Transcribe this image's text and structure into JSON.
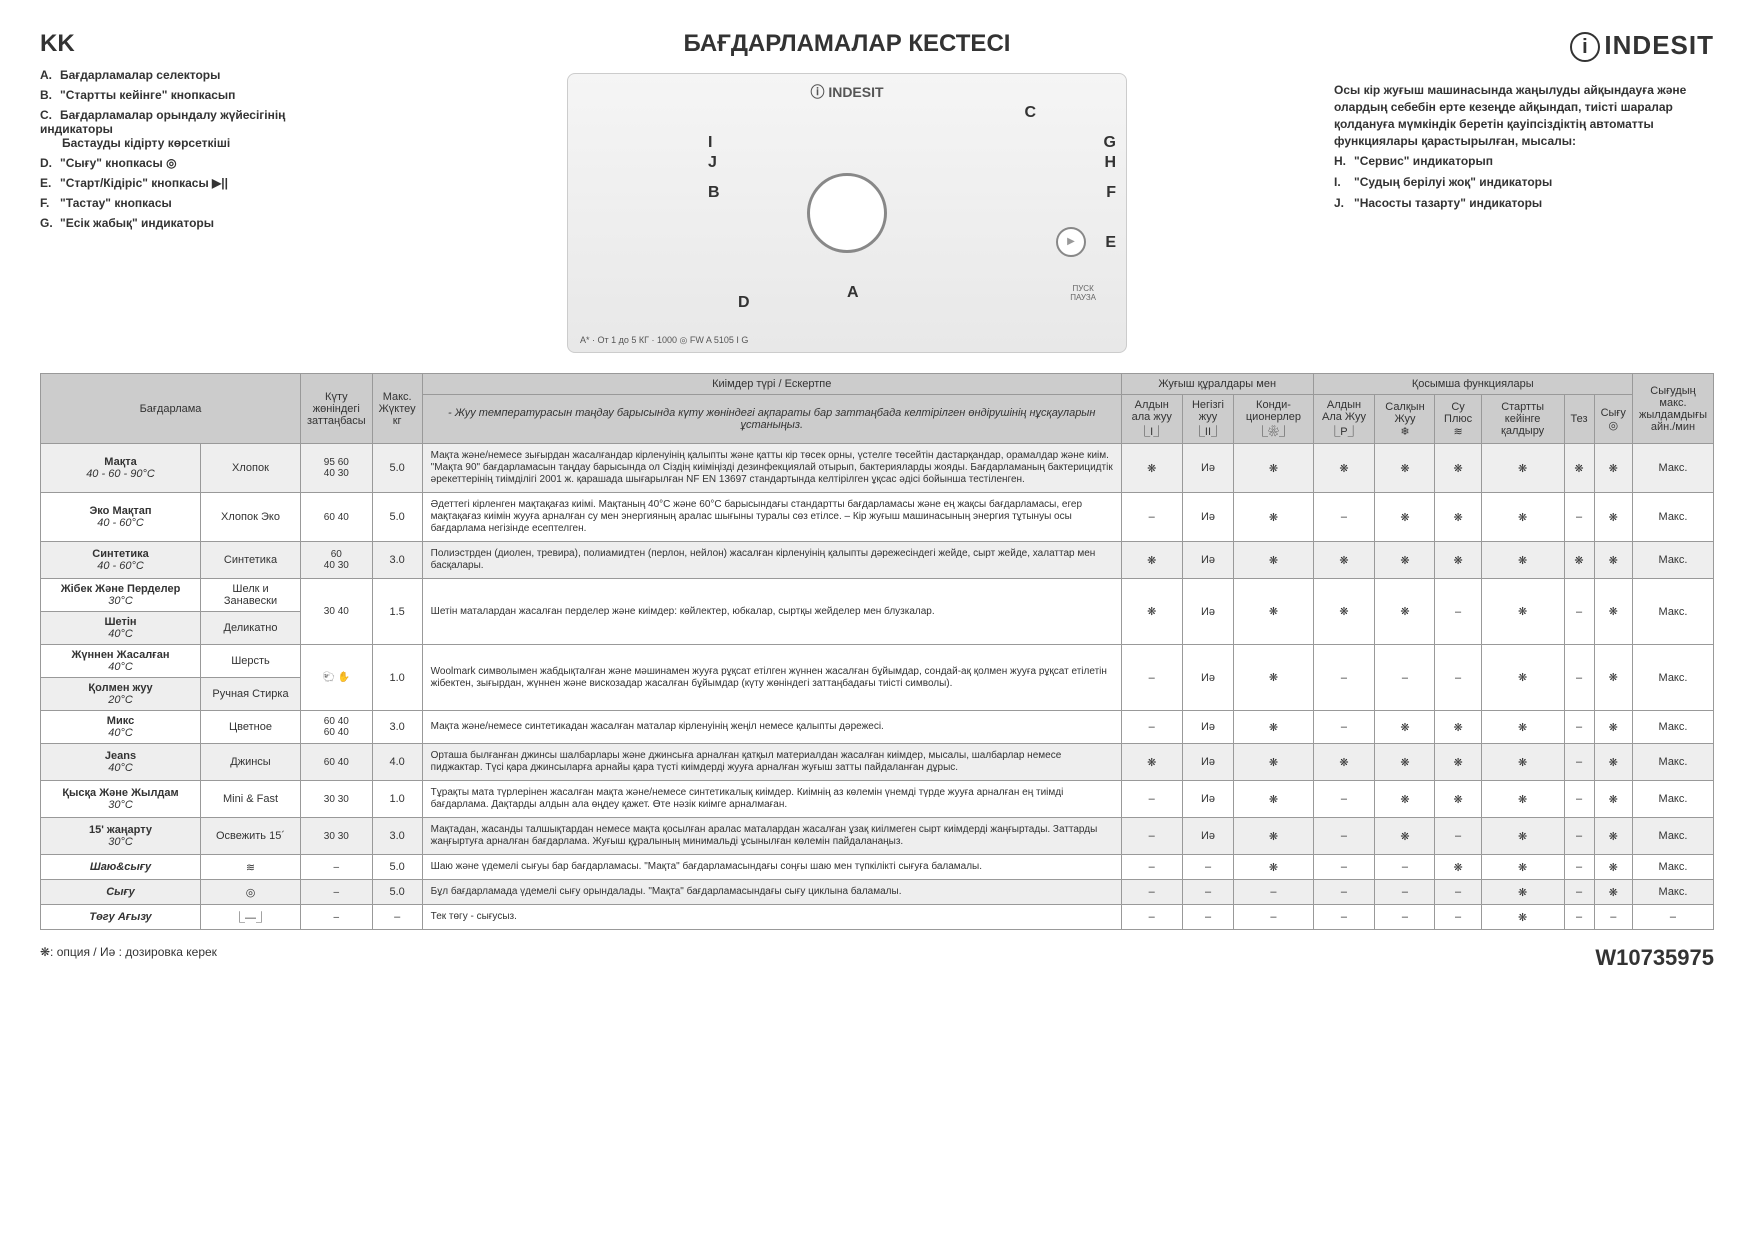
{
  "lang_label": "KK",
  "main_title": "БАҒДАРЛАМАЛАР КЕСТЕСІ",
  "brand": "INDESIT",
  "legend_left": [
    {
      "letter": "A.",
      "text": "Бағдарламалар селекторы"
    },
    {
      "letter": "B.",
      "text": "\"Стартты кейінге\" кнопкасып"
    },
    {
      "letter": "C.",
      "text": "Бағдарламалар орындалу жүйесігінің индикаторы",
      "sub": "Бастауды кідірту көрсеткіші"
    },
    {
      "letter": "D.",
      "text": "\"Сығу\" кнопкасы ◎"
    },
    {
      "letter": "E.",
      "text": "\"Старт/Кідіріс\" кнопкасы ▶||"
    },
    {
      "letter": "F.",
      "text": "\"Тастау\" кнопкасы"
    },
    {
      "letter": "G.",
      "text": "\"Есік жабық\" индикаторы"
    }
  ],
  "right_intro": "Осы кір жуғыш машинасында жаңылуды айқындауға және олардың себебін ерте кезеңде айқындап, тиісті шаралар қолдануға мүмкіндік беретін қауіпсіздіктің автоматты функциялары қарастырылған, мысалы:",
  "legend_right": [
    {
      "letter": "H.",
      "text": "\"Сервис\" индикаторып"
    },
    {
      "letter": "I.",
      "text": "\"Судың берілуі жоқ\" индикаторы"
    },
    {
      "letter": "J.",
      "text": "\"Насосты тазарту\" индикаторы"
    }
  ],
  "panel_labels": [
    "A",
    "B",
    "C",
    "D",
    "E",
    "F",
    "G",
    "H",
    "I",
    "J"
  ],
  "panel_bottom": "A* · От 1 до 5 КГ · 1000 ◎    FW A 5105 I G",
  "table_headers": {
    "program": "Бағдарлама",
    "care_label": "Күту жөніндегі заттаңбасы",
    "max_load": "Макс. Жүктеу кг",
    "fabric_type": "Киімдер түрі / Ескертпе",
    "fabric_note": "- Жуу температурасын таңдау барысында күту жөніндегі ақпараты бар заттаңбада келтірілген өндірушінің нұсқауларын ұстаныңыз.",
    "detergents": "Жуғыш құралдары мен",
    "det_cols": [
      "Алдын ала жуу",
      "Негізгі жуу",
      "Конди-ционерлер"
    ],
    "det_icons": [
      "⎿I⏌",
      "⎿II⏌",
      "⎿❀⏌"
    ],
    "options": "Қосымша функциялары",
    "opt_cols": [
      "Алдын Ала Жуу",
      "Салқын Жуу",
      "Су Плюс",
      "Стартты кейінге қалдыру",
      "Тез",
      "Сығу"
    ],
    "opt_icons": [
      "⎿P⏌",
      "❄",
      "≋",
      "",
      "",
      "◎"
    ],
    "spin": "Сығудың макс. жылдамдығы айн./мин"
  },
  "rows": [
    {
      "name": "Мақта",
      "temp": "40 - 60 - 90°C",
      "name_ru": "Хлопок",
      "care": "95 60\n40 30",
      "load": "5.0",
      "desc": "Мақта және/немесе зығырдан жасалғандар кірленуінің қалыпты және қатты кір төсек орны, үстелге төсейтін дастарқандар, орамалдар және киім. \"Мақта 90\" бағдарламасын таңдау барысында ол Сіздің киіміңізді дезинфекциялай отырып, бактерияларды жояды. Бағдарламаның бактерицидтік әрекеттерінің тиімділігі 2001 ж. қарашада шығарылған NF EN 13697 стандартында келтірілген ұқсас әдісі бойынша тестіленген.",
      "c1": "❋",
      "c2": "Иә",
      "c3": "❋",
      "o1": "❋",
      "o2": "❋",
      "o3": "❋",
      "o4": "❋",
      "o5": "❋",
      "o6": "❋",
      "spin": "Макс."
    },
    {
      "name": "Эко Мақтап",
      "temp": "40 - 60°C",
      "name_ru": "Хлопок Эко",
      "care": "60 40",
      "load": "5.0",
      "desc": "Әдеттегі кірленген мақтақағаз киімі. Мақтаның  40°C және 60°C барысындағы стандартты бағдарламасы және ең жақсы бағдарламасы, егер мақтақағаз киімін жууға арналған су мен энергияның аралас шығыны туралы сөз етілсе. – Кір жуғыш машинасының энергия тұтынуы  осы бағдарлама негізінде есептелген.",
      "c1": "–",
      "c2": "Иә",
      "c3": "❋",
      "o1": "–",
      "o2": "❋",
      "o3": "❋",
      "o4": "❋",
      "o5": "–",
      "o6": "❋",
      "spin": "Макс."
    },
    {
      "name": "Синтетика",
      "temp": "40 - 60°C",
      "name_ru": "Синтетика",
      "care": "60\n40 30",
      "load": "3.0",
      "desc": "Полиэстрден (диолен, тревира), полиамидтен (перлон, нейлон) жасалған кірленуінің қалыпты дәрежесіндегі жейде, сырт жейде, халаттар мен басқалары.",
      "c1": "❋",
      "c2": "Иә",
      "c3": "❋",
      "o1": "❋",
      "o2": "❋",
      "o3": "❋",
      "o4": "❋",
      "o5": "❋",
      "o6": "❋",
      "spin": "Макс."
    },
    {
      "name": "Жібек Және Перделер",
      "temp": "30°C",
      "name_ru": "Шелк и Занавески",
      "care": "30 40",
      "load": "1.5",
      "desc": "Шетін маталардан жасалған перделер және киімдер: көйлектер, юбкалар, сыртқы жейделер мен блузкалар.",
      "c1": "❋",
      "c2": "Иә",
      "c3": "❋",
      "o1": "❋",
      "o2": "❋",
      "o3": "–",
      "o4": "❋",
      "o5": "–",
      "o6": "❋",
      "spin": "Макс.",
      "merge_next": true
    },
    {
      "name": "Шетін",
      "temp": "40°C",
      "name_ru": "Деликатно",
      "merged": true
    },
    {
      "name": "Жүннен Жасалған",
      "temp": "40°C",
      "name_ru": "Шерсть",
      "care": "🐑 ✋",
      "load": "1.0",
      "desc": "Woolmark символымен жабдықталған және мәшинамен жууға рұқсат етілген жүннен жасалған бұйымдар, сондай-ақ қолмен жууға рұқсат етілетін жібектен, зығырдан, жүннен және вискозадар жасалған бұйымдар (күту жөніндегі заттаңбадағы тиісті символы).",
      "c1": "–",
      "c2": "Иә",
      "c3": "❋",
      "o1": "–",
      "o2": "–",
      "o3": "–",
      "o4": "❋",
      "o5": "–",
      "o6": "❋",
      "spin": "Макс.",
      "merge_next": true
    },
    {
      "name": "Қолмен жуу",
      "temp": "20°C",
      "name_ru": "Ручная Стирка",
      "merged": true
    },
    {
      "name": "Микс",
      "temp": "40°C",
      "name_ru": "Цветное",
      "care": "60 40\n60 40",
      "load": "3.0",
      "desc": "Мақта және/немесе синтетикадан жасалған маталар кірленуінің жеңіл немесе қалыпты дәрежесі.",
      "c1": "–",
      "c2": "Иә",
      "c3": "❋",
      "o1": "–",
      "o2": "❋",
      "o3": "❋",
      "o4": "❋",
      "o5": "–",
      "o6": "❋",
      "spin": "Макс."
    },
    {
      "name": "Jeans",
      "temp": "40°C",
      "name_ru": "Джинсы",
      "care": "60 40",
      "load": "4.0",
      "desc": "Орташа былғанған джинсы шалбарлары және джинсыға арналған қатқыл материалдан жасалған киімдер, мысалы, шалбарлар немесе пиджактар. Түсі қара джинсыларға арнайы қара түсті киімдерді жууға арналған жуғыш затты пайдаланған дұрыс.",
      "c1": "❋",
      "c2": "Иә",
      "c3": "❋",
      "o1": "❋",
      "o2": "❋",
      "o3": "❋",
      "o4": "❋",
      "o5": "–",
      "o6": "❋",
      "spin": "Макс."
    },
    {
      "name": "Қысқа Және Жылдам",
      "temp": "30°C",
      "name_ru": "Mini & Fast",
      "care": "30 30",
      "load": "1.0",
      "desc": "Тұрақты мата түрлерінен жасалған мақта және/немесе синтетикалық киімдер. Киімнің аз көлемін үнемді түрде жууға арналған ең тиімді бағдарлама. Дақтарды алдын ала өңдеу қажет. Өте нәзік киімге арналмаған.",
      "c1": "–",
      "c2": "Иә",
      "c3": "❋",
      "o1": "–",
      "o2": "❋",
      "o3": "❋",
      "o4": "❋",
      "o5": "–",
      "o6": "❋",
      "spin": "Макс."
    },
    {
      "name": "15' жаңарту",
      "temp": "30°C",
      "name_ru": "Освежить 15´",
      "care": "30 30",
      "load": "3.0",
      "desc": "Мақтадан, жасанды талшықтардан немесе мақта қосылған аралас маталардан жасалған ұзақ киілмеген сырт киімдерді жаңғыртады. Заттарды жаңғыртуға арналған бағдарлама. Жуғыш құралының минимальді ұсынылған көлемін пайдаланаңыз.",
      "c1": "–",
      "c2": "Иә",
      "c3": "❋",
      "o1": "–",
      "o2": "❋",
      "o3": "–",
      "o4": "❋",
      "o5": "–",
      "o6": "❋",
      "spin": "Макс."
    },
    {
      "name": "Шаю&сығу",
      "temp": "",
      "name_ru": "≋",
      "care": "–",
      "load": "5.0",
      "desc": "Шаю және үдемелі сығуы бар бағдарламасы. \"Мақта\" бағдарламасындағы соңғы шаю мен түпкілікті сығуға баламалы.",
      "c1": "–",
      "c2": "–",
      "c3": "❋",
      "o1": "–",
      "o2": "–",
      "o3": "❋",
      "o4": "❋",
      "o5": "–",
      "o6": "❋",
      "spin": "Макс.",
      "italic": true
    },
    {
      "name": "Сығу",
      "temp": "",
      "name_ru": "◎",
      "care": "–",
      "load": "5.0",
      "desc": "Бұл бағдарламада үдемелі сығу орындалады. \"Мақта\" бағдарламасындағы сығу циклына баламалы.",
      "c1": "–",
      "c2": "–",
      "c3": "–",
      "o1": "–",
      "o2": "–",
      "o3": "–",
      "o4": "❋",
      "o5": "–",
      "o6": "❋",
      "spin": "Макс.",
      "italic": true
    },
    {
      "name": "Төгу Ағызу",
      "temp": "",
      "name_ru": "⎿—⏌",
      "care": "–",
      "load": "–",
      "desc": "Тек төгу - сығусыз.",
      "c1": "–",
      "c2": "–",
      "c3": "–",
      "o1": "–",
      "o2": "–",
      "o3": "–",
      "o4": "❋",
      "o5": "–",
      "o6": "–",
      "spin": "–",
      "italic": true
    }
  ],
  "footnote": "❋:   опция / Иә : дозировка керек",
  "doc_number": "W10735975"
}
